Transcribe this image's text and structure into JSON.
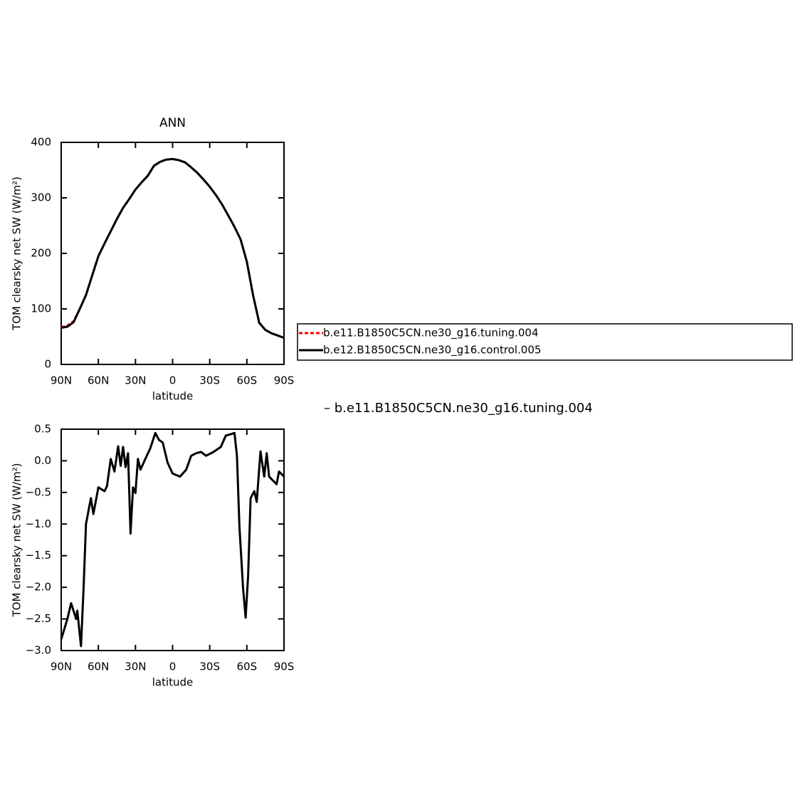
{
  "chart_data": [
    {
      "type": "line",
      "title": "ANN",
      "xlabel": "latitude",
      "ylabel": "TOM clearsky net SW (W/m²)",
      "xlim": [
        90,
        -90
      ],
      "ylim": [
        0,
        400
      ],
      "xticks": [
        {
          "value": 90,
          "label": "90N"
        },
        {
          "value": 60,
          "label": "60N"
        },
        {
          "value": 30,
          "label": "30N"
        },
        0,
        {
          "value": -30,
          "label": "30S"
        },
        {
          "value": -60,
          "label": "60S"
        },
        {
          "value": -90,
          "label": "90S"
        }
      ],
      "yticks": [
        0,
        100,
        200,
        300,
        400
      ],
      "legend": "right",
      "x": [
        90,
        85,
        80,
        75,
        70,
        65,
        60,
        55,
        50,
        45,
        40,
        35,
        30,
        25,
        20,
        15,
        10,
        5,
        0,
        -5,
        -10,
        -15,
        -20,
        -25,
        -30,
        -35,
        -40,
        -45,
        -50,
        -55,
        -60,
        -65,
        -70,
        -75,
        -80,
        -85,
        -90
      ],
      "series": [
        {
          "name": "b.e11.B1850C5CN.ne30_g16.tuning.004",
          "color": "#ff0000",
          "dash": true,
          "values": [
            67,
            70,
            78,
            100,
            125,
            160,
            195,
            218,
            240,
            262,
            282,
            298,
            315,
            328,
            340,
            358,
            365,
            369,
            370,
            368,
            364,
            355,
            345,
            333,
            320,
            305,
            288,
            268,
            248,
            225,
            185,
            125,
            75,
            62,
            56,
            52,
            48
          ]
        },
        {
          "name": "b.e12.B1850C5CN.ne30_g16.control.005",
          "color": "#000000",
          "dash": false,
          "values": [
            66,
            68,
            76,
            100,
            125,
            160,
            195,
            218,
            240,
            262,
            282,
            298,
            315,
            328,
            340,
            358,
            365,
            369,
            370,
            368,
            364,
            355,
            345,
            333,
            320,
            305,
            288,
            268,
            248,
            225,
            185,
            125,
            75,
            62,
            56,
            52,
            48
          ]
        }
      ]
    },
    {
      "type": "line",
      "xlabel": "latitude",
      "ylabel": "TOM clearsky net SW (W/m²)",
      "annotation": "– b.e11.B1850C5CN.ne30_g16.tuning.004",
      "xlim": [
        90,
        -90
      ],
      "ylim": [
        -3.0,
        0.5
      ],
      "xticks": [
        {
          "value": 90,
          "label": "90N"
        },
        {
          "value": 60,
          "label": "60N"
        },
        {
          "value": 30,
          "label": "30N"
        },
        0,
        {
          "value": -30,
          "label": "30S"
        },
        {
          "value": -60,
          "label": "60S"
        },
        {
          "value": -90,
          "label": "90S"
        }
      ],
      "yticks": [
        0.5,
        {
          "value": 0,
          "label": "0.0"
        },
        {
          "value": -0.5,
          "label": "−0.5"
        },
        {
          "value": -1,
          "label": "−1.0"
        },
        {
          "value": -1.5,
          "label": "−1.5"
        },
        {
          "value": -2,
          "label": "−2.0"
        },
        {
          "value": -2.5,
          "label": "−2.5"
        },
        {
          "value": -3,
          "label": "−3.0"
        }
      ],
      "x": [
        90,
        85,
        82,
        78,
        77,
        74,
        72,
        70,
        66,
        64,
        60,
        55,
        53,
        50,
        47,
        44,
        42,
        40,
        38,
        36,
        34,
        32,
        30,
        28,
        26,
        22,
        18,
        14,
        11,
        8,
        4,
        0,
        -6,
        -11,
        -15,
        -19,
        -23,
        -27,
        -33,
        -39,
        -43,
        -47,
        -50,
        -52,
        -54,
        -57,
        -59,
        -61,
        -63,
        -66,
        -68,
        -71,
        -74,
        -76,
        -78,
        -81,
        -84,
        -86,
        -90
      ],
      "series": [
        {
          "name": "b.e11.B1850C5CN.ne30_g16.tuning.004",
          "color": "#000000",
          "values": [
            -2.82,
            -2.5,
            -2.25,
            -2.5,
            -2.37,
            -2.93,
            -2.05,
            -1.0,
            -0.59,
            -0.84,
            -0.42,
            -0.48,
            -0.4,
            0.03,
            -0.17,
            0.23,
            -0.08,
            0.22,
            -0.1,
            0.12,
            -1.15,
            -0.42,
            -0.51,
            0.03,
            -0.14,
            0.03,
            0.2,
            0.44,
            0.33,
            0.29,
            -0.03,
            -0.2,
            -0.25,
            -0.14,
            0.08,
            0.12,
            0.14,
            0.08,
            0.14,
            0.22,
            0.4,
            0.42,
            0.44,
            0.08,
            -1.04,
            -2.03,
            -2.48,
            -1.82,
            -0.59,
            -0.48,
            -0.65,
            0.15,
            -0.25,
            0.12,
            -0.25,
            -0.31,
            -0.37,
            -0.17,
            -0.25
          ]
        }
      ]
    }
  ]
}
